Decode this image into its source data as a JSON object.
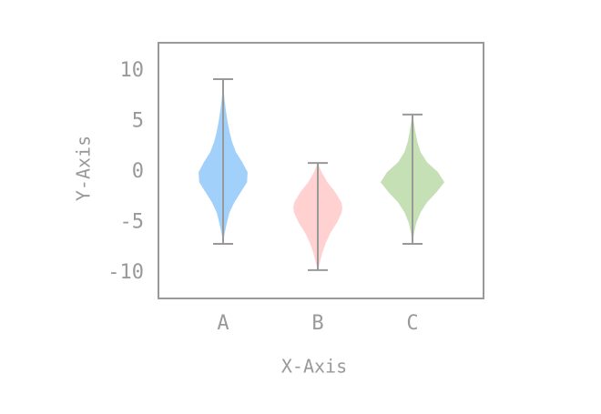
{
  "chart_data": {
    "type": "violin",
    "xlabel": "X-Axis",
    "ylabel": "Y-Axis",
    "categories": [
      "A",
      "B",
      "C"
    ],
    "ylim": [
      -12.5,
      12.8
    ],
    "yticks": [
      10,
      5,
      0,
      -5,
      -10
    ],
    "grid": false,
    "violins": [
      {
        "color": "#a1d0fb",
        "min": -7.1,
        "max": 9.2,
        "profile_y": [
          -7.1,
          -6,
          -5,
          -4,
          -3,
          -2,
          -1,
          0,
          1,
          2,
          3,
          4,
          5,
          6,
          7,
          8,
          9.2
        ],
        "profile_width": [
          0,
          0.05,
          0.12,
          0.2,
          0.35,
          0.55,
          0.75,
          0.77,
          0.6,
          0.4,
          0.28,
          0.2,
          0.14,
          0.09,
          0.05,
          0.02,
          0
        ]
      },
      {
        "color": "#ffd1d1",
        "min": -9.7,
        "max": 0.9,
        "profile_y": [
          -9.7,
          -9,
          -8,
          -7,
          -6,
          -5,
          -4,
          -3.5,
          -3,
          -2,
          -1,
          0,
          0.9
        ],
        "profile_width": [
          0,
          0.06,
          0.14,
          0.25,
          0.4,
          0.6,
          0.75,
          0.77,
          0.74,
          0.55,
          0.3,
          0.12,
          0
        ]
      },
      {
        "color": "#c5e0b4",
        "min": -7.1,
        "max": 5.7,
        "profile_y": [
          -7.1,
          -6,
          -5,
          -4,
          -3,
          -2,
          -1,
          0,
          1,
          2,
          3,
          4,
          5,
          5.7
        ],
        "profile_width": [
          0,
          0.05,
          0.12,
          0.25,
          0.45,
          0.75,
          1.0,
          0.8,
          0.45,
          0.25,
          0.15,
          0.09,
          0.04,
          0
        ]
      }
    ]
  }
}
